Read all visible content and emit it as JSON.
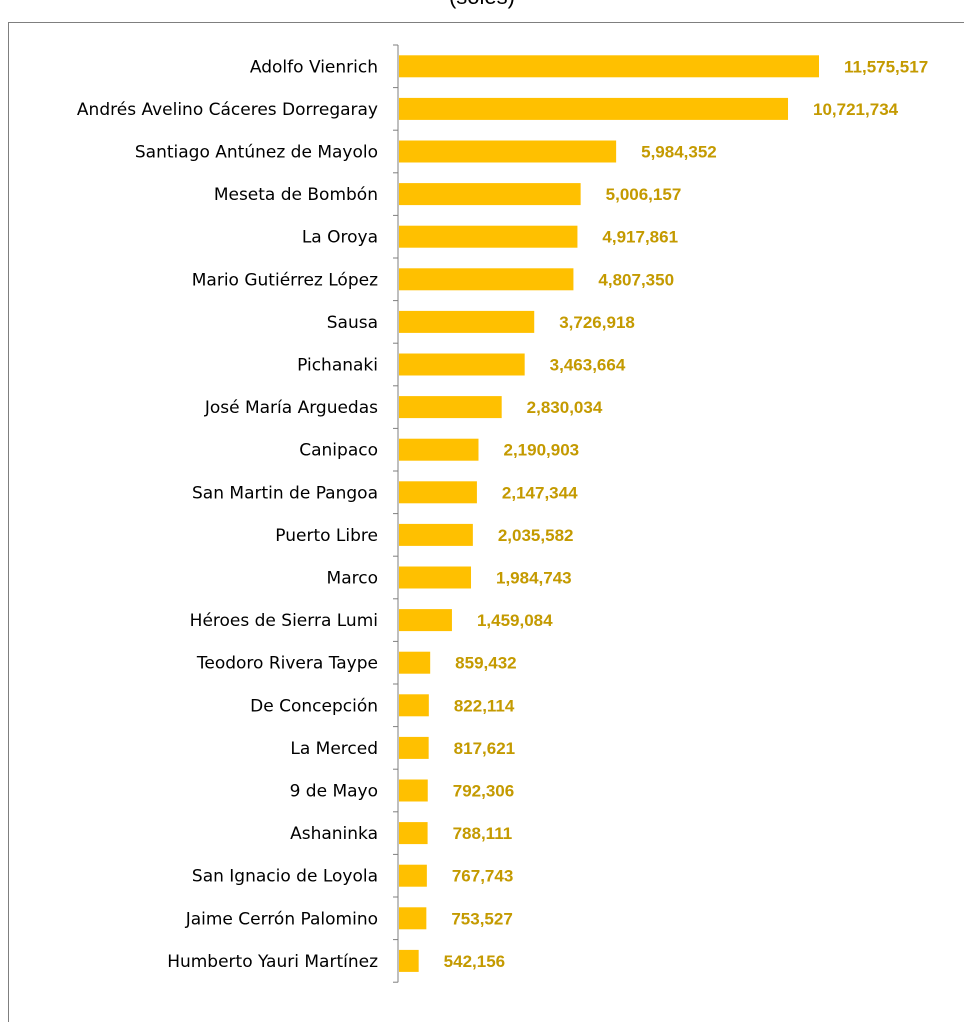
{
  "chart_data": {
    "type": "bar",
    "orientation": "horizontal",
    "title": "(soles)",
    "colors": {
      "bar": "#FFC000",
      "value_label": "#C49A00",
      "axis": "#7f7f7f"
    },
    "categories": [
      "Adolfo Vienrich",
      "Andrés Avelino Cáceres Dorregaray",
      "Santiago Antúnez de Mayolo",
      "Meseta de Bombón",
      "La Oroya",
      "Mario Gutiérrez López",
      "Sausa",
      "Pichanaki",
      "José María Arguedas",
      "Canipaco",
      "San Martin de Pangoa",
      "Puerto Libre",
      "Marco",
      "Héroes de Sierra Lumi",
      "Teodoro Rivera Taype",
      "De Concepción",
      "La Merced",
      "9 de Mayo",
      "Ashaninka",
      "San Ignacio de Loyola",
      "Jaime Cerrón Palomino",
      "Humberto Yauri Martínez"
    ],
    "values": [
      11575517,
      10721734,
      5984352,
      5006157,
      4917861,
      4807350,
      3726918,
      3463664,
      2830034,
      2190903,
      2147344,
      2035582,
      1984743,
      1459084,
      859432,
      822114,
      817621,
      792306,
      788111,
      767743,
      753527,
      542156
    ],
    "value_labels": [
      "11,575,517",
      "10,721,734",
      "5,984,352",
      "5,006,157",
      "4,917,861",
      "4,807,350",
      "3,726,918",
      "3,463,664",
      "2,830,034",
      "2,190,903",
      "2,147,344",
      "2,035,582",
      "1,984,743",
      "1,459,084",
      "859,432",
      "822,114",
      "817,621",
      "792,306",
      "788,111",
      "767,743",
      "753,527",
      "542,156"
    ],
    "xlim": [
      0,
      12000000
    ],
    "grid": false,
    "legend": "none"
  }
}
